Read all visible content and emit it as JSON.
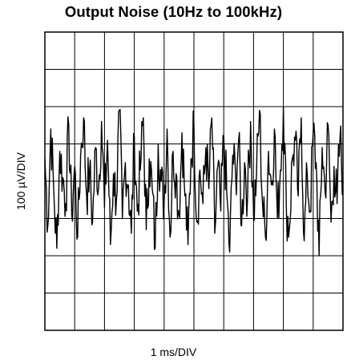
{
  "chart_data": {
    "type": "line",
    "title": "Output Noise (10Hz to 100kHz)",
    "xlabel": "1 ms/DIV",
    "ylabel": "100 µV/DIV",
    "grid": true,
    "x_divisions": 10,
    "y_divisions": 8,
    "xlim": [
      0,
      10
    ],
    "ylim": [
      -400,
      400
    ],
    "x_unit": "ms",
    "y_unit": "µV",
    "series": [
      {
        "values_note": "",
        "x": [
          0,
          0.1,
          0.2,
          0.3,
          0.4,
          0.5,
          0.6,
          0.7,
          0.8,
          0.9,
          1.0,
          1.1,
          1.2,
          1.3,
          1.4,
          1.5,
          1.6,
          1.7,
          1.8,
          1.9,
          2.0,
          2.1,
          2.2,
          2.3,
          2.4,
          2.5,
          2.6,
          2.7,
          2.8,
          2.9,
          3.0,
          3.1,
          3.2,
          3.3,
          3.4,
          3.5,
          3.6,
          3.7,
          3.8,
          3.9,
          4.0,
          4.1,
          4.2,
          4.3,
          4.4,
          4.5,
          4.6,
          4.7,
          4.8,
          4.9,
          5.0,
          5.1,
          5.2,
          5.3,
          5.4,
          5.5,
          5.6,
          5.7,
          5.8,
          5.9,
          6.0,
          6.1,
          6.2,
          6.3,
          6.4,
          6.5,
          6.6,
          6.7,
          6.8,
          6.9,
          7.0,
          7.1,
          7.2,
          7.3,
          7.4,
          7.5,
          7.6,
          7.7,
          7.8,
          7.9,
          8.0,
          8.1,
          8.2,
          8.3,
          8.4,
          8.5,
          8.6,
          8.7,
          8.8,
          8.9,
          9.0,
          9.1,
          9.2,
          9.3,
          9.4,
          9.5,
          9.6,
          9.7,
          9.8,
          9.9,
          10.0
        ],
        "values": [
          60,
          -120,
          140,
          -30,
          -180,
          80,
          10,
          -60,
          150,
          -90,
          40,
          -150,
          70,
          170,
          -40,
          30,
          -110,
          90,
          -20,
          160,
          -70,
          110,
          -170,
          20,
          -50,
          190,
          -100,
          50,
          -10,
          -140,
          120,
          -80,
          30,
          170,
          -130,
          60,
          -20,
          -180,
          100,
          0,
          -60,
          140,
          -150,
          80,
          20,
          -90,
          130,
          -40,
          -170,
          60,
          150,
          -110,
          30,
          -60,
          90,
          -20,
          170,
          -140,
          40,
          -80,
          120,
          -30,
          -190,
          70,
          10,
          110,
          -120,
          50,
          -40,
          160,
          -90,
          20,
          190,
          -60,
          -150,
          80,
          -10,
          140,
          -100,
          30,
          200,
          -70,
          -130,
          60,
          110,
          -40,
          170,
          -160,
          20,
          -80,
          130,
          50,
          -200,
          90,
          -30,
          150,
          -110,
          40,
          -60,
          120,
          0
        ]
      }
    ]
  }
}
